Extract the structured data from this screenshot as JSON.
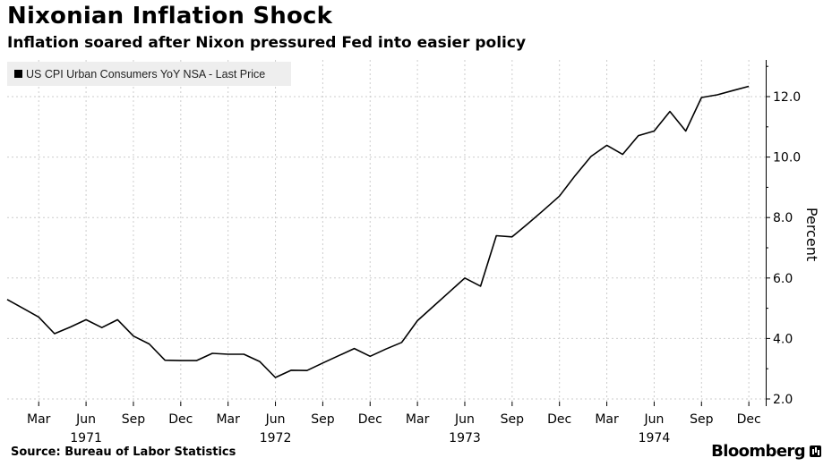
{
  "header": {
    "title": "Nixonian Inflation Shock",
    "subtitle": "Inflation soared after Nixon pressured Fed into easier policy"
  },
  "footer": {
    "source": "Source: Bureau of Labor Statistics",
    "brand": "Bloomberg"
  },
  "colors": {
    "line": "#000000",
    "grid": "#cccccc",
    "legend_bg": "#eeeeee",
    "background": "#ffffff"
  },
  "chart_data": {
    "type": "line",
    "title": "Nixonian Inflation Shock",
    "subtitle": "Inflation soared after Nixon pressured Fed into easier policy",
    "xlabel": "",
    "ylabel": "Percent",
    "ylim": [
      2.0,
      13.0
    ],
    "yticks": [
      2.0,
      4.0,
      6.0,
      8.0,
      10.0,
      12.0
    ],
    "ytick_labels": [
      "2.0",
      "4.0",
      "6.0",
      "8.0",
      "10.0",
      "12.0"
    ],
    "grid": true,
    "legend": "top-left",
    "x_month_ticks": [
      {
        "index": 2,
        "label": "Mar"
      },
      {
        "index": 5,
        "label": "Jun"
      },
      {
        "index": 8,
        "label": "Sep"
      },
      {
        "index": 11,
        "label": "Dec"
      },
      {
        "index": 14,
        "label": "Mar"
      },
      {
        "index": 17,
        "label": "Jun"
      },
      {
        "index": 20,
        "label": "Sep"
      },
      {
        "index": 23,
        "label": "Dec"
      },
      {
        "index": 26,
        "label": "Mar"
      },
      {
        "index": 29,
        "label": "Jun"
      },
      {
        "index": 32,
        "label": "Sep"
      },
      {
        "index": 35,
        "label": "Dec"
      },
      {
        "index": 38,
        "label": "Mar"
      },
      {
        "index": 41,
        "label": "Jun"
      },
      {
        "index": 44,
        "label": "Sep"
      },
      {
        "index": 47,
        "label": "Dec"
      }
    ],
    "x_year_labels": [
      {
        "index": 5,
        "label": "1971"
      },
      {
        "index": 17,
        "label": "1972"
      },
      {
        "index": 29,
        "label": "1973"
      },
      {
        "index": 41,
        "label": "1974"
      }
    ],
    "series": [
      {
        "name": "US CPI Urban Consumers YoY NSA - Last Price",
        "x": [
          "Jan 1971",
          "Feb 1971",
          "Mar 1971",
          "Apr 1971",
          "May 1971",
          "Jun 1971",
          "Jul 1971",
          "Aug 1971",
          "Sep 1971",
          "Oct 1971",
          "Nov 1971",
          "Dec 1971",
          "Jan 1972",
          "Feb 1972",
          "Mar 1972",
          "Apr 1972",
          "May 1972",
          "Jun 1972",
          "Jul 1972",
          "Aug 1972",
          "Sep 1972",
          "Oct 1972",
          "Nov 1972",
          "Dec 1972",
          "Jan 1973",
          "Feb 1973",
          "Mar 1973",
          "Apr 1973",
          "May 1973",
          "Jun 1973",
          "Jul 1973",
          "Aug 1973",
          "Sep 1973",
          "Oct 1973",
          "Nov 1973",
          "Dec 1973",
          "Jan 1974",
          "Feb 1974",
          "Mar 1974",
          "Apr 1974",
          "May 1974",
          "Jun 1974",
          "Jul 1974",
          "Aug 1974",
          "Sep 1974",
          "Oct 1974",
          "Nov 1974",
          "Dec 1974"
        ],
        "values": [
          5.29,
          5.0,
          4.71,
          4.16,
          4.38,
          4.62,
          4.36,
          4.62,
          4.08,
          3.82,
          3.28,
          3.27,
          3.27,
          3.51,
          3.48,
          3.48,
          3.24,
          2.71,
          2.95,
          2.94,
          3.19,
          3.43,
          3.67,
          3.41,
          3.65,
          3.87,
          4.59,
          5.06,
          5.53,
          6.0,
          5.73,
          7.4,
          7.36,
          7.8,
          8.25,
          8.71,
          9.39,
          10.02,
          10.39,
          10.09,
          10.71,
          10.86,
          11.51,
          10.86,
          11.97,
          12.06,
          12.2,
          12.34
        ]
      }
    ]
  }
}
